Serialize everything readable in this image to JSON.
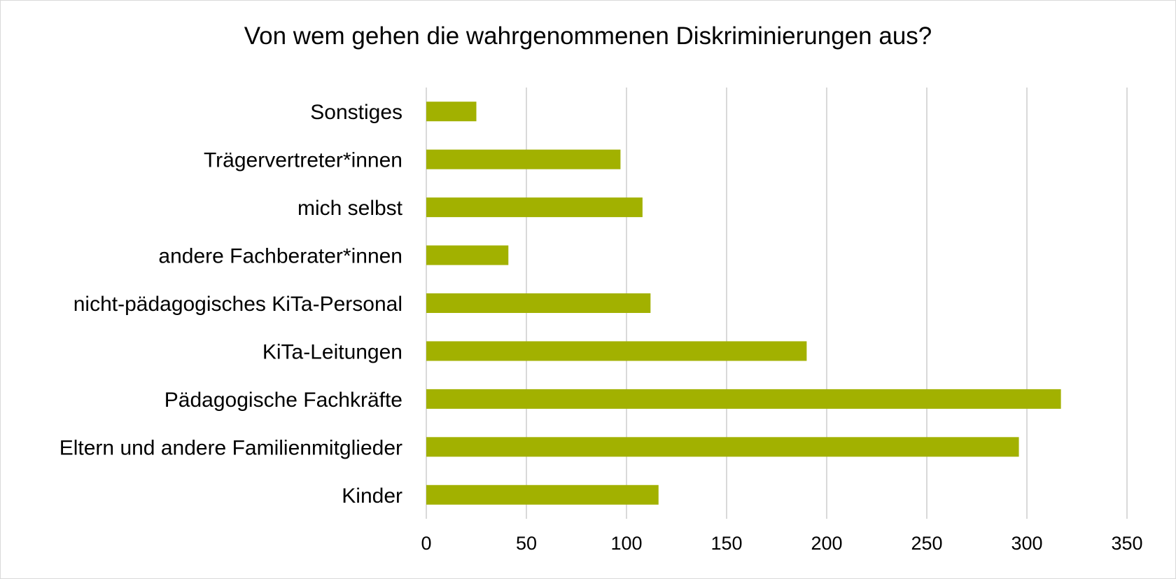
{
  "chart_data": {
    "type": "bar",
    "orientation": "horizontal",
    "title": "Von wem gehen die wahrgenommenen Diskriminierungen aus?",
    "categories": [
      "Kinder",
      "Eltern und andere Familienmitglieder",
      "Pädagogische Fachkräfte",
      "KiTa-Leitungen",
      "nicht-pädagogisches KiTa-Personal",
      "andere Fachberater*innen",
      "mich selbst",
      "Trägervertreter*innen",
      "Sonstiges"
    ],
    "values": [
      116,
      296,
      317,
      190,
      112,
      41,
      108,
      97,
      25
    ],
    "xlim": [
      0,
      350
    ],
    "xticks": [
      "0",
      "50",
      "100",
      "150",
      "200",
      "250",
      "300",
      "350"
    ],
    "xlabel": "",
    "ylabel": "",
    "grid": "vertical",
    "legend": "none",
    "bar_color": "#a2b100",
    "grid_color": "#d9d9d9"
  }
}
